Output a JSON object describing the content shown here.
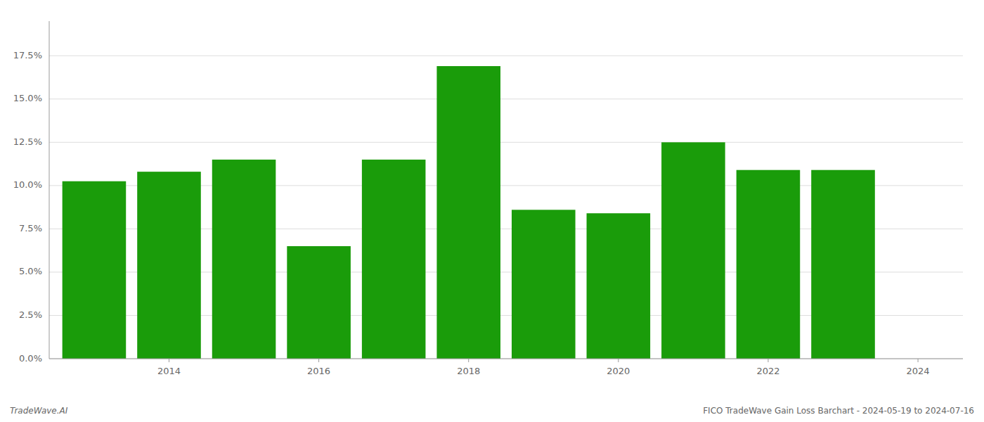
{
  "chart_data": {
    "type": "bar",
    "x": [
      2013,
      2014,
      2015,
      2016,
      2017,
      2018,
      2019,
      2020,
      2021,
      2022,
      2023
    ],
    "values": [
      0.1025,
      0.108,
      0.115,
      0.065,
      0.115,
      0.169,
      0.086,
      0.084,
      0.125,
      0.109,
      0.109
    ],
    "color": "#1a9c0a",
    "xlim": [
      2012.4,
      2024.6
    ],
    "xticks": [
      2014,
      2016,
      2018,
      2020,
      2022,
      2024
    ],
    "ylim": [
      0,
      0.195
    ],
    "yticks": [
      {
        "value": 0.0,
        "label": "0.0%"
      },
      {
        "value": 0.025,
        "label": "2.5%"
      },
      {
        "value": 0.05,
        "label": "5.0%"
      },
      {
        "value": 0.075,
        "label": "7.5%"
      },
      {
        "value": 0.1,
        "label": "10.0%"
      },
      {
        "value": 0.125,
        "label": "12.5%"
      },
      {
        "value": 0.15,
        "label": "15.0%"
      },
      {
        "value": 0.175,
        "label": "17.5%"
      }
    ],
    "grid": true,
    "annotations": [
      "TradeWave.AI",
      "FICO TradeWave Gain Loss Barchart - 2024-05-19 to 2024-07-16"
    ]
  }
}
